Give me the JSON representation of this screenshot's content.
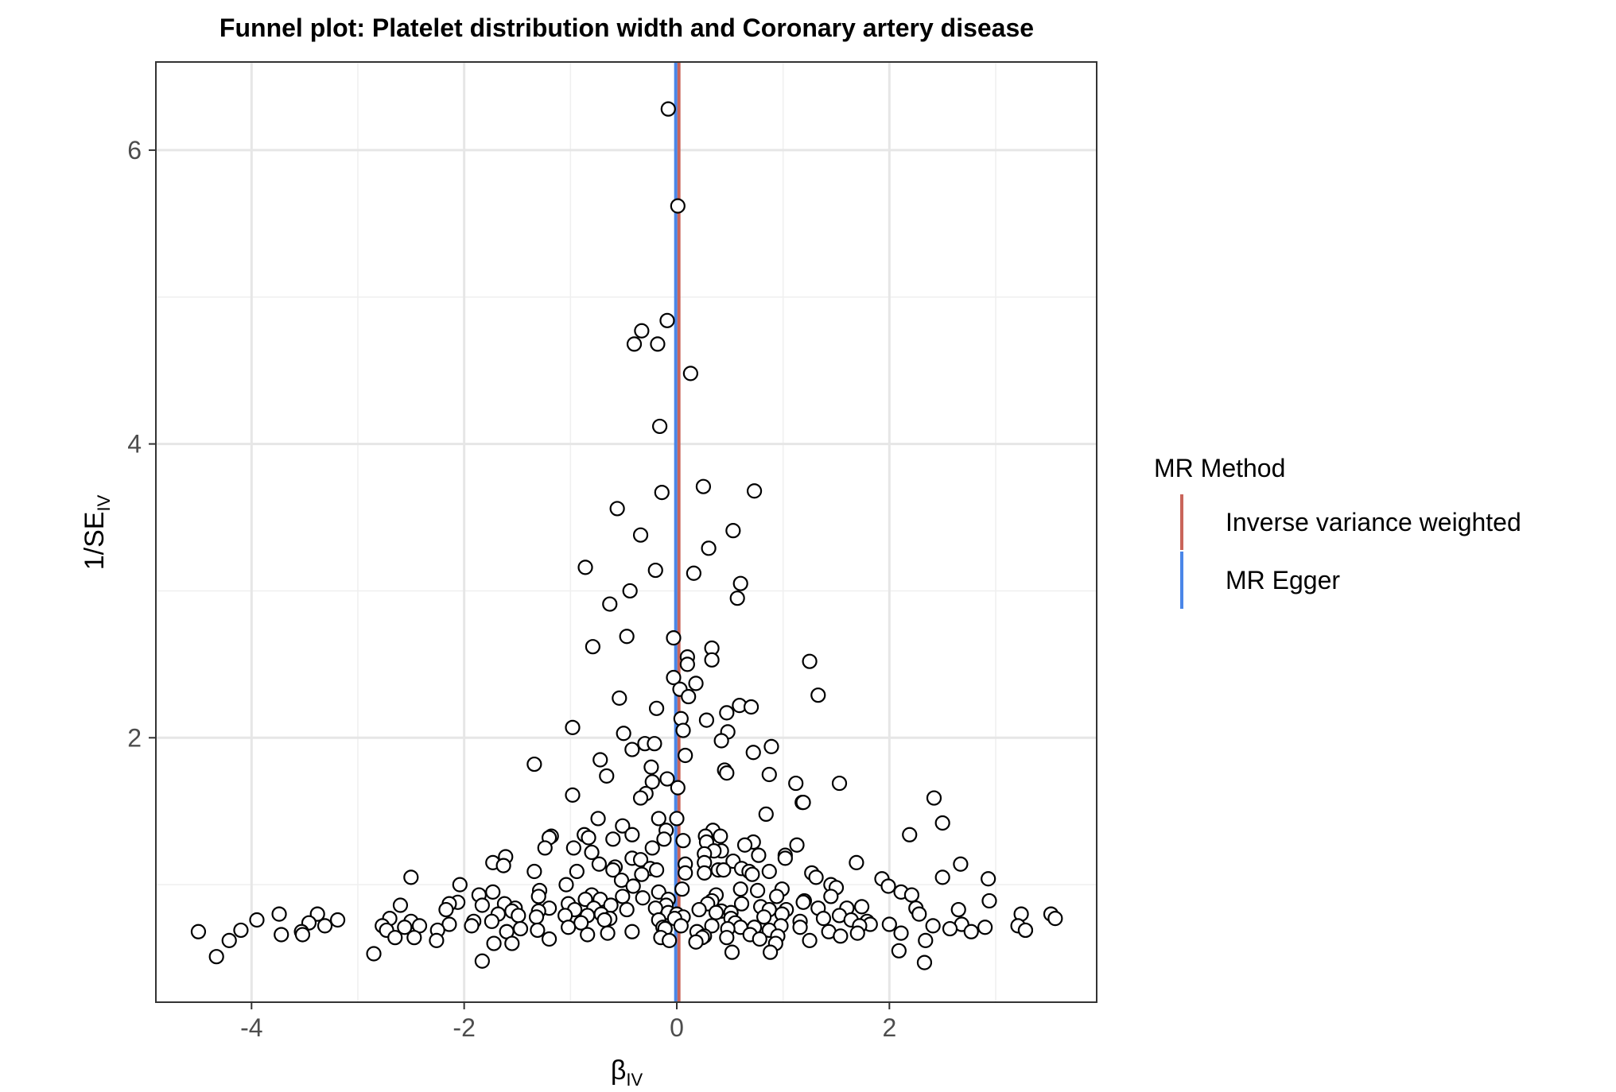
{
  "chart_data": {
    "type": "scatter",
    "title": "Funnel plot: Platelet distribution width and Coronary artery disease",
    "xlabel": {
      "main": "β",
      "sub": "IV"
    },
    "ylabel": {
      "main": "1/SE",
      "sub": "IV"
    },
    "xlim": [
      -4.9,
      3.95
    ],
    "ylim": [
      0.2,
      6.6
    ],
    "x_ticks": [
      -4,
      -2,
      0,
      2
    ],
    "y_ticks": [
      2,
      4,
      6
    ],
    "grid": true,
    "legend": {
      "title": "MR Method",
      "position": "right",
      "entries": [
        {
          "name": "Inverse variance weighted",
          "color": "#c9655a"
        },
        {
          "name": "MR Egger",
          "color": "#4a86e8"
        }
      ]
    },
    "lines": [
      {
        "name": "Inverse variance weighted",
        "slope": 0.02,
        "color": "#c9655a"
      },
      {
        "name": "MR Egger",
        "slope": -0.01,
        "color": "#4a86e8"
      }
    ],
    "points": [
      [
        -0.08,
        6.28
      ],
      [
        0.01,
        5.62
      ],
      [
        -0.09,
        4.84
      ],
      [
        -0.33,
        4.77
      ],
      [
        -0.4,
        4.68
      ],
      [
        -0.18,
        4.68
      ],
      [
        0.13,
        4.48
      ],
      [
        -0.16,
        4.12
      ],
      [
        -0.14,
        3.67
      ],
      [
        0.25,
        3.71
      ],
      [
        0.73,
        3.68
      ],
      [
        -0.56,
        3.56
      ],
      [
        -0.34,
        3.38
      ],
      [
        0.53,
        3.41
      ],
      [
        0.3,
        3.29
      ],
      [
        -0.86,
        3.16
      ],
      [
        -0.2,
        3.14
      ],
      [
        0.16,
        3.12
      ],
      [
        0.6,
        3.05
      ],
      [
        0.57,
        2.95
      ],
      [
        -0.44,
        3.0
      ],
      [
        -0.63,
        2.91
      ],
      [
        -0.03,
        2.68
      ],
      [
        -0.47,
        2.69
      ],
      [
        -0.79,
        2.62
      ],
      [
        0.33,
        2.61
      ],
      [
        0.1,
        2.55
      ],
      [
        0.33,
        2.53
      ],
      [
        0.1,
        2.5
      ],
      [
        1.25,
        2.52
      ],
      [
        -0.03,
        2.41
      ],
      [
        0.18,
        2.37
      ],
      [
        0.03,
        2.33
      ],
      [
        0.11,
        2.28
      ],
      [
        1.33,
        2.29
      ],
      [
        -0.54,
        2.27
      ],
      [
        0.59,
        2.22
      ],
      [
        0.7,
        2.21
      ],
      [
        -0.19,
        2.2
      ],
      [
        0.47,
        2.17
      ],
      [
        0.04,
        2.13
      ],
      [
        0.28,
        2.12
      ],
      [
        0.06,
        2.05
      ],
      [
        0.48,
        2.04
      ],
      [
        -0.98,
        2.07
      ],
      [
        -0.5,
        2.03
      ],
      [
        0.42,
        1.98
      ],
      [
        -0.3,
        1.96
      ],
      [
        -0.21,
        1.96
      ],
      [
        0.89,
        1.94
      ],
      [
        -0.42,
        1.92
      ],
      [
        0.72,
        1.9
      ],
      [
        0.08,
        1.88
      ],
      [
        -1.34,
        1.82
      ],
      [
        -0.72,
        1.85
      ],
      [
        0.45,
        1.78
      ],
      [
        -0.24,
        1.8
      ],
      [
        0.47,
        1.76
      ],
      [
        0.87,
        1.75
      ],
      [
        -0.66,
        1.74
      ],
      [
        -0.09,
        1.72
      ],
      [
        -0.23,
        1.7
      ],
      [
        1.12,
        1.69
      ],
      [
        1.53,
        1.69
      ],
      [
        0.01,
        1.66
      ],
      [
        -0.29,
        1.62
      ],
      [
        -0.98,
        1.61
      ],
      [
        -0.34,
        1.59
      ],
      [
        2.42,
        1.59
      ],
      [
        1.18,
        1.56
      ],
      [
        1.19,
        1.56
      ],
      [
        0.84,
        1.48
      ],
      [
        -0.74,
        1.45
      ],
      [
        -0.17,
        1.45
      ],
      [
        0.0,
        1.45
      ],
      [
        2.5,
        1.42
      ],
      [
        -0.51,
        1.4
      ],
      [
        0.34,
        1.37
      ],
      [
        -0.1,
        1.37
      ],
      [
        -0.42,
        1.34
      ],
      [
        0.41,
        1.33
      ],
      [
        -0.87,
        1.34
      ],
      [
        0.27,
        1.33
      ],
      [
        -0.6,
        1.31
      ],
      [
        -0.83,
        1.32
      ],
      [
        0.06,
        1.3
      ],
      [
        0.28,
        1.29
      ],
      [
        0.72,
        1.29
      ],
      [
        -0.12,
        1.31
      ],
      [
        -1.18,
        1.33
      ],
      [
        -1.2,
        1.32
      ],
      [
        2.19,
        1.34
      ],
      [
        0.64,
        1.27
      ],
      [
        1.13,
        1.27
      ],
      [
        0.42,
        1.23
      ],
      [
        -0.8,
        1.22
      ],
      [
        -0.23,
        1.25
      ],
      [
        -1.24,
        1.25
      ],
      [
        0.35,
        1.23
      ],
      [
        -0.97,
        1.25
      ],
      [
        0.26,
        1.21
      ],
      [
        0.77,
        1.2
      ],
      [
        1.02,
        1.2
      ],
      [
        -0.42,
        1.18
      ],
      [
        -1.61,
        1.19
      ],
      [
        -0.34,
        1.17
      ],
      [
        0.53,
        1.16
      ],
      [
        1.69,
        1.15
      ],
      [
        2.67,
        1.14
      ],
      [
        -1.73,
        1.15
      ],
      [
        -0.73,
        1.14
      ],
      [
        0.08,
        1.14
      ],
      [
        1.02,
        1.18
      ],
      [
        0.26,
        1.15
      ],
      [
        -0.58,
        1.12
      ],
      [
        -0.25,
        1.11
      ],
      [
        0.61,
        1.11
      ],
      [
        0.39,
        1.1
      ],
      [
        -1.63,
        1.13
      ],
      [
        -0.6,
        1.1
      ],
      [
        0.68,
        1.09
      ],
      [
        -0.19,
        1.1
      ],
      [
        0.44,
        1.1
      ],
      [
        -0.94,
        1.09
      ],
      [
        0.87,
        1.09
      ],
      [
        -1.34,
        1.09
      ],
      [
        0.08,
        1.08
      ],
      [
        0.26,
        1.08
      ],
      [
        1.27,
        1.08
      ],
      [
        1.31,
        1.05
      ],
      [
        -0.33,
        1.07
      ],
      [
        0.71,
        1.07
      ],
      [
        1.93,
        1.04
      ],
      [
        2.5,
        1.05
      ],
      [
        2.93,
        1.04
      ],
      [
        -0.52,
        1.03
      ],
      [
        -2.5,
        1.05
      ],
      [
        -2.04,
        1.0
      ],
      [
        1.45,
        1.0
      ],
      [
        -1.04,
        1.0
      ],
      [
        1.5,
        0.98
      ],
      [
        0.6,
        0.97
      ],
      [
        -0.41,
        0.99
      ],
      [
        1.99,
        0.99
      ],
      [
        0.05,
        0.97
      ],
      [
        -1.29,
        0.96
      ],
      [
        0.99,
        0.97
      ],
      [
        0.76,
        0.96
      ],
      [
        2.11,
        0.95
      ],
      [
        2.21,
        0.93
      ],
      [
        -0.17,
        0.95
      ],
      [
        1.45,
        0.92
      ],
      [
        -0.8,
        0.93
      ],
      [
        0.37,
        0.93
      ],
      [
        -1.86,
        0.93
      ],
      [
        -0.32,
        0.91
      ],
      [
        -1.73,
        0.95
      ],
      [
        -0.51,
        0.92
      ],
      [
        0.94,
        0.92
      ],
      [
        -1.3,
        0.92
      ],
      [
        -0.72,
        0.9
      ],
      [
        -0.86,
        0.9
      ],
      [
        1.2,
        0.89
      ],
      [
        -0.08,
        0.9
      ],
      [
        0.33,
        0.89
      ],
      [
        2.94,
        0.89
      ],
      [
        -2.06,
        0.88
      ],
      [
        -1.02,
        0.87
      ],
      [
        -2.14,
        0.87
      ],
      [
        1.19,
        0.88
      ],
      [
        0.61,
        0.87
      ],
      [
        -0.1,
        0.86
      ],
      [
        0.29,
        0.87
      ],
      [
        -1.62,
        0.87
      ],
      [
        -2.6,
        0.86
      ],
      [
        -0.62,
        0.86
      ],
      [
        -1.83,
        0.86
      ],
      [
        1.74,
        0.85
      ],
      [
        0.79,
        0.85
      ],
      [
        -0.96,
        0.83
      ],
      [
        0.21,
        0.83
      ],
      [
        -0.2,
        0.84
      ],
      [
        -1.52,
        0.84
      ],
      [
        -0.78,
        0.84
      ],
      [
        1.6,
        0.84
      ],
      [
        -1.2,
        0.84
      ],
      [
        2.25,
        0.84
      ],
      [
        1.33,
        0.84
      ],
      [
        1.03,
        0.83
      ],
      [
        0.87,
        0.83
      ],
      [
        2.65,
        0.83
      ],
      [
        -1.3,
        0.82
      ],
      [
        -1.55,
        0.82
      ],
      [
        -2.17,
        0.83
      ],
      [
        -0.47,
        0.83
      ],
      [
        0.42,
        0.82
      ],
      [
        -0.08,
        0.81
      ],
      [
        0.51,
        0.81
      ],
      [
        0.37,
        0.81
      ],
      [
        0.0,
        0.8
      ],
      [
        -0.71,
        0.8
      ],
      [
        -1.68,
        0.8
      ],
      [
        0.99,
        0.8
      ],
      [
        1.53,
        0.79
      ],
      [
        -3.38,
        0.8
      ],
      [
        -3.74,
        0.8
      ],
      [
        2.28,
        0.8
      ],
      [
        3.24,
        0.8
      ],
      [
        -1.49,
        0.79
      ],
      [
        -1.05,
        0.79
      ],
      [
        -0.84,
        0.79
      ],
      [
        3.52,
        0.8
      ],
      [
        0.06,
        0.78
      ],
      [
        0.51,
        0.77
      ],
      [
        -0.02,
        0.77
      ],
      [
        -0.63,
        0.77
      ],
      [
        0.82,
        0.78
      ],
      [
        1.38,
        0.77
      ],
      [
        1.64,
        0.76
      ],
      [
        -1.32,
        0.78
      ],
      [
        -2.7,
        0.77
      ],
      [
        -0.68,
        0.76
      ],
      [
        -3.19,
        0.76
      ],
      [
        -0.17,
        0.76
      ],
      [
        1.79,
        0.75
      ],
      [
        -1.91,
        0.75
      ],
      [
        -3.95,
        0.76
      ],
      [
        1.16,
        0.75
      ],
      [
        3.56,
        0.77
      ],
      [
        -2.5,
        0.75
      ],
      [
        0.55,
        0.74
      ],
      [
        -1.74,
        0.75
      ],
      [
        -0.9,
        0.74
      ],
      [
        -3.46,
        0.74
      ],
      [
        2.0,
        0.73
      ],
      [
        1.82,
        0.73
      ],
      [
        2.68,
        0.73
      ],
      [
        -3.31,
        0.72
      ],
      [
        -2.14,
        0.73
      ],
      [
        0.33,
        0.72
      ],
      [
        0.04,
        0.72
      ],
      [
        1.72,
        0.72
      ],
      [
        0.98,
        0.72
      ],
      [
        -2.77,
        0.72
      ],
      [
        -1.93,
        0.72
      ],
      [
        2.41,
        0.72
      ],
      [
        -0.13,
        0.71
      ],
      [
        -2.42,
        0.72
      ],
      [
        0.73,
        0.71
      ],
      [
        0.6,
        0.71
      ],
      [
        1.16,
        0.71
      ],
      [
        -0.11,
        0.7
      ],
      [
        -1.47,
        0.7
      ],
      [
        -1.02,
        0.71
      ],
      [
        -2.56,
        0.71
      ],
      [
        3.21,
        0.72
      ],
      [
        0.48,
        0.7
      ],
      [
        -1.31,
        0.69
      ],
      [
        -2.73,
        0.69
      ],
      [
        0.87,
        0.69
      ],
      [
        2.57,
        0.7
      ],
      [
        2.9,
        0.71
      ],
      [
        3.28,
        0.69
      ],
      [
        0.19,
        0.68
      ],
      [
        1.43,
        0.68
      ],
      [
        -3.53,
        0.68
      ],
      [
        -1.6,
        0.68
      ],
      [
        -4.5,
        0.68
      ],
      [
        2.11,
        0.67
      ],
      [
        -0.42,
        0.68
      ],
      [
        -4.1,
        0.69
      ],
      [
        -2.25,
        0.69
      ],
      [
        1.7,
        0.67
      ],
      [
        3.28,
        0.69
      ],
      [
        2.77,
        0.68
      ],
      [
        -0.65,
        0.67
      ],
      [
        0.69,
        0.66
      ],
      [
        -0.84,
        0.66
      ],
      [
        1.54,
        0.65
      ],
      [
        0.95,
        0.65
      ],
      [
        0.26,
        0.65
      ],
      [
        -3.52,
        0.66
      ],
      [
        -3.72,
        0.66
      ],
      [
        0.47,
        0.64
      ],
      [
        -0.15,
        0.64
      ],
      [
        -2.65,
        0.64
      ],
      [
        -2.47,
        0.64
      ],
      [
        0.78,
        0.63
      ],
      [
        0.24,
        0.64
      ],
      [
        -1.2,
        0.63
      ],
      [
        -0.07,
        0.62
      ],
      [
        1.25,
        0.62
      ],
      [
        2.34,
        0.62
      ],
      [
        0.18,
        0.61
      ],
      [
        -4.21,
        0.62
      ],
      [
        -2.26,
        0.62
      ],
      [
        -1.72,
        0.6
      ],
      [
        -1.55,
        0.6
      ],
      [
        0.93,
        0.6
      ],
      [
        0.88,
        0.54
      ],
      [
        2.09,
        0.55
      ],
      [
        -2.85,
        0.53
      ],
      [
        0.52,
        0.54
      ],
      [
        -4.33,
        0.51
      ],
      [
        -1.83,
        0.48
      ],
      [
        2.33,
        0.47
      ]
    ]
  }
}
